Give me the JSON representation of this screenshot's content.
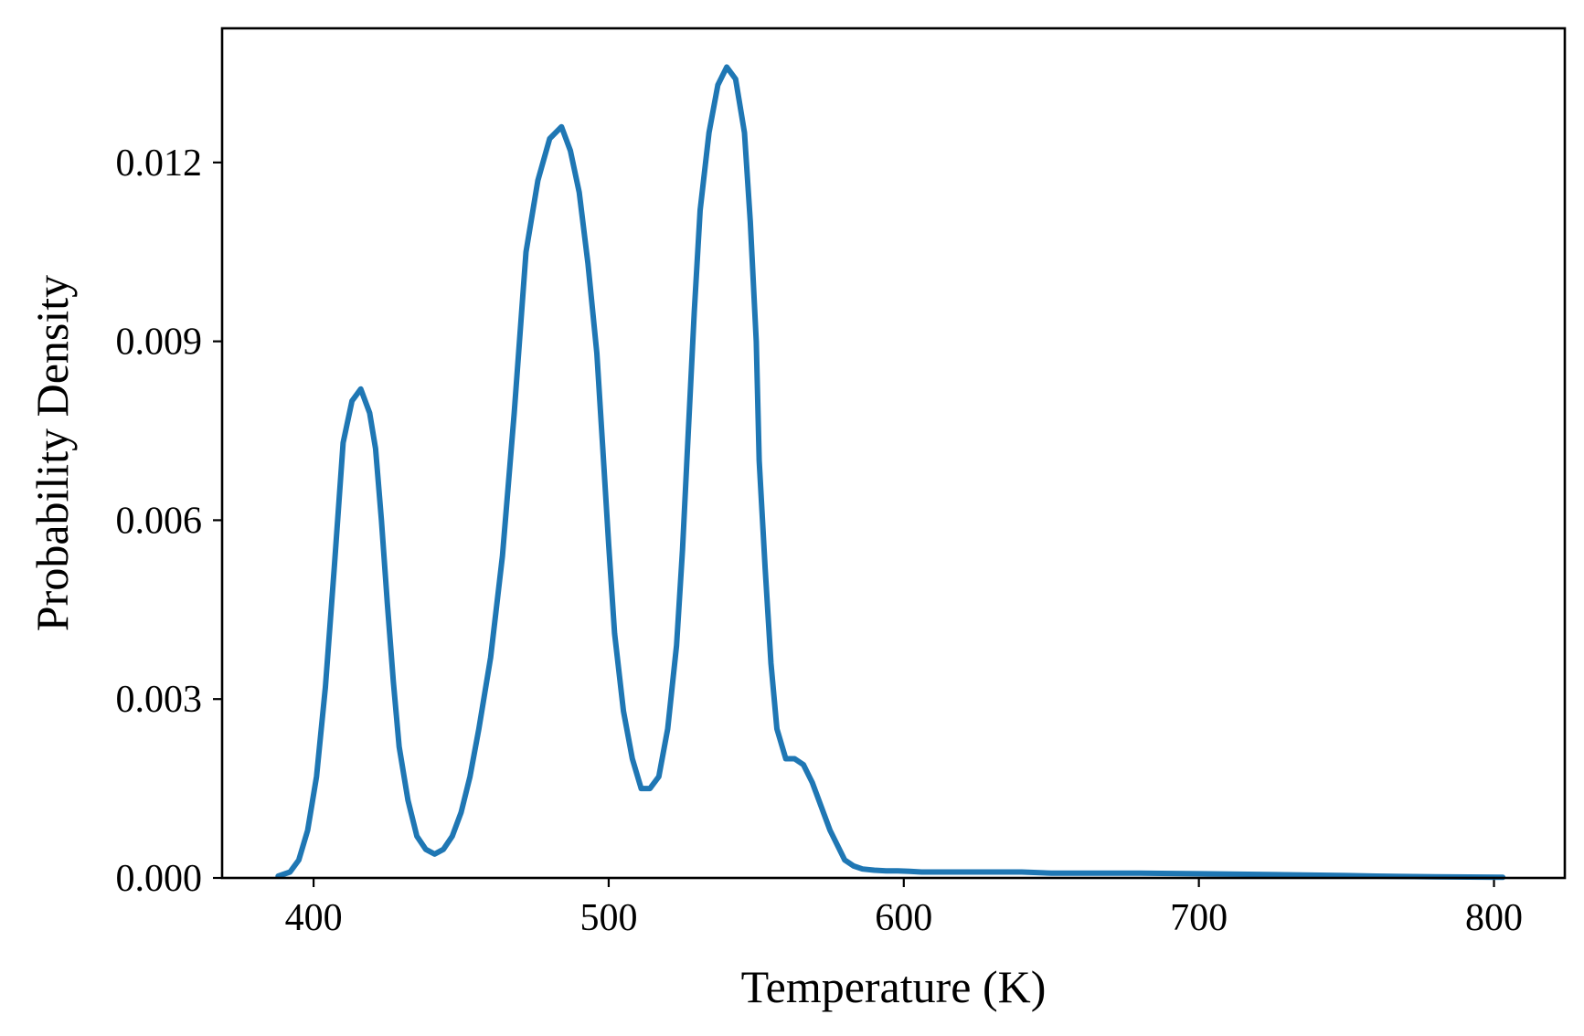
{
  "chart_data": {
    "type": "line",
    "title": "",
    "xlabel": "Temperature (K)",
    "ylabel": "Probability Density",
    "xlim": [
      369,
      824
    ],
    "ylim": [
      0,
      0.01425
    ],
    "xticks": [
      400,
      500,
      600,
      700,
      800
    ],
    "xtick_labels": [
      "400",
      "500",
      "600",
      "700",
      "800"
    ],
    "yticks": [
      0,
      0.003,
      0.006,
      0.009,
      0.012
    ],
    "ytick_labels": [
      "0.000",
      "0.003",
      "0.006",
      "0.009",
      "0.012"
    ],
    "grid": false,
    "legend": null,
    "color": "#1f77b4",
    "series": [
      {
        "x": [
          388,
          392,
          395,
          398,
          401,
          404,
          407,
          410,
          413,
          416,
          419,
          421,
          423,
          425,
          427,
          429,
          432,
          435,
          438,
          441,
          444,
          447,
          450,
          453,
          456,
          460,
          464,
          468,
          472,
          476,
          480,
          484,
          487,
          490,
          493,
          496,
          498,
          500,
          502,
          505,
          508,
          511,
          514,
          517,
          520,
          523,
          525,
          527,
          529,
          531,
          534,
          537,
          540,
          543,
          546,
          548,
          550,
          551,
          553,
          555,
          557,
          560,
          563,
          566,
          569,
          572,
          575,
          578,
          580,
          583,
          586,
          590,
          594,
          598,
          602,
          606,
          610,
          614,
          618,
          622,
          626,
          630,
          640,
          650,
          660,
          680,
          700,
          720,
          735,
          750,
          760,
          780,
          803
        ],
        "y": [
          3e-05,
          0.0001,
          0.0003,
          0.0008,
          0.0017,
          0.0032,
          0.0052,
          0.0073,
          0.008,
          0.0082,
          0.0078,
          0.0072,
          0.006,
          0.0046,
          0.0033,
          0.0022,
          0.0013,
          0.0007,
          0.00048,
          0.0004,
          0.00048,
          0.0007,
          0.0011,
          0.0017,
          0.0025,
          0.0037,
          0.0054,
          0.0078,
          0.0105,
          0.0117,
          0.0124,
          0.0126,
          0.0122,
          0.0115,
          0.0103,
          0.0088,
          0.0072,
          0.0056,
          0.0041,
          0.0028,
          0.002,
          0.0015,
          0.0015,
          0.0017,
          0.0025,
          0.0039,
          0.0055,
          0.0075,
          0.0095,
          0.0112,
          0.0125,
          0.0133,
          0.0136,
          0.0134,
          0.0125,
          0.011,
          0.009,
          0.007,
          0.0052,
          0.0036,
          0.0025,
          0.002,
          0.002,
          0.0019,
          0.0016,
          0.0012,
          0.0008,
          0.0005,
          0.0003,
          0.0002,
          0.00015,
          0.00013,
          0.00012,
          0.00012,
          0.00011,
          0.0001,
          0.0001,
          0.0001,
          0.0001,
          0.0001,
          0.0001,
          0.0001,
          0.0001,
          8e-05,
          8e-05,
          8e-05,
          7e-05,
          6e-05,
          5e-05,
          4e-05,
          3e-05,
          2e-05,
          1e-05
        ]
      }
    ]
  }
}
